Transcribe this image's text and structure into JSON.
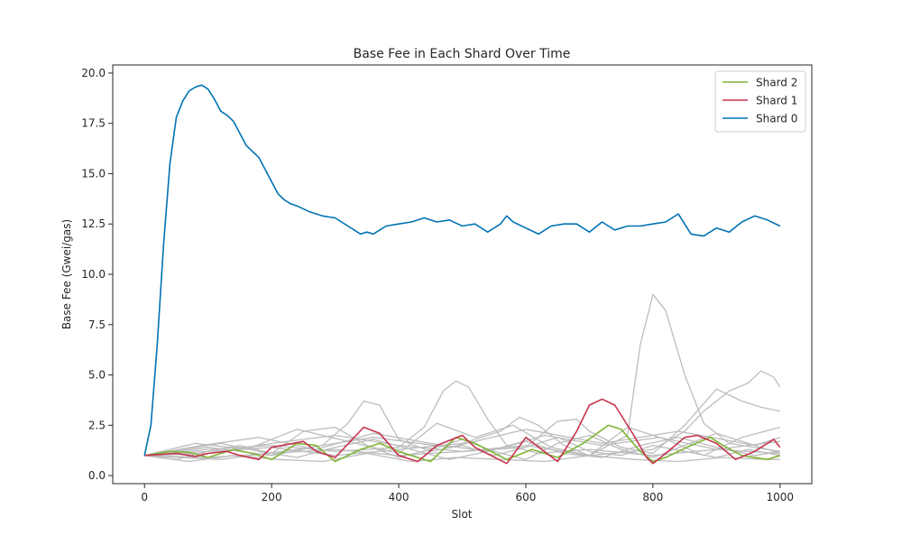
{
  "chart_data": {
    "type": "line",
    "title": "Base Fee in Each Shard Over Time",
    "xlabel": "Slot",
    "ylabel": "Base Fee (Gwei/gas)",
    "xlim": [
      -50,
      1050
    ],
    "ylim": [
      -0.4,
      20.4
    ],
    "xticks": [
      0,
      200,
      400,
      600,
      800,
      1000
    ],
    "xtick_labels": [
      "0",
      "200",
      "400",
      "600",
      "800",
      "1000"
    ],
    "yticks": [
      0.0,
      2.5,
      5.0,
      7.5,
      10.0,
      12.5,
      15.0,
      17.5,
      20.0
    ],
    "ytick_labels": [
      "0.0",
      "2.5",
      "5.0",
      "7.5",
      "10.0",
      "12.5",
      "15.0",
      "17.5",
      "20.0"
    ],
    "grid": false,
    "legend_position": "top-right",
    "legend": [
      "Shard 2",
      "Shard 1",
      "Shard 0"
    ],
    "colors": {
      "shard0": "#0072b2",
      "shard1": "#c8324e",
      "shard2": "#7fb535",
      "other": "#bdbdbd"
    },
    "series": [
      {
        "name": "Shard 0",
        "x": [
          0,
          10,
          20,
          30,
          40,
          50,
          60,
          70,
          80,
          90,
          100,
          110,
          120,
          130,
          140,
          150,
          160,
          170,
          180,
          190,
          200,
          210,
          220,
          230,
          240,
          260,
          280,
          300,
          320,
          340,
          350,
          360,
          380,
          400,
          420,
          440,
          460,
          480,
          500,
          520,
          540,
          560,
          570,
          580,
          600,
          620,
          640,
          660,
          680,
          700,
          720,
          740,
          760,
          780,
          800,
          820,
          840,
          860,
          880,
          900,
          920,
          940,
          960,
          980,
          1000
        ],
        "y": [
          1.0,
          2.5,
          6.5,
          11.5,
          15.5,
          17.8,
          18.6,
          19.1,
          19.3,
          19.4,
          19.2,
          18.7,
          18.1,
          17.9,
          17.6,
          17.0,
          16.4,
          16.1,
          15.8,
          15.2,
          14.6,
          14.0,
          13.7,
          13.5,
          13.4,
          13.1,
          12.9,
          12.8,
          12.4,
          12.0,
          12.1,
          12.0,
          12.4,
          12.5,
          12.6,
          12.8,
          12.6,
          12.7,
          12.4,
          12.5,
          12.1,
          12.5,
          12.9,
          12.6,
          12.3,
          12.0,
          12.4,
          12.5,
          12.5,
          12.1,
          12.6,
          12.2,
          12.4,
          12.4,
          12.5,
          12.6,
          13.0,
          12.0,
          11.9,
          12.3,
          12.1,
          12.6,
          12.9,
          12.7,
          12.4
        ]
      },
      {
        "name": "Shard 1",
        "x": [
          0,
          50,
          80,
          100,
          130,
          150,
          180,
          200,
          250,
          270,
          300,
          330,
          345,
          370,
          400,
          430,
          460,
          500,
          520,
          570,
          600,
          650,
          680,
          700,
          720,
          740,
          770,
          790,
          800,
          820,
          850,
          870,
          900,
          930,
          960,
          990,
          1000
        ],
        "y": [
          1.0,
          1.1,
          0.95,
          1.1,
          1.2,
          1.0,
          0.8,
          1.4,
          1.7,
          1.2,
          0.9,
          1.9,
          2.4,
          2.1,
          1.0,
          0.7,
          1.5,
          2.0,
          1.4,
          0.6,
          1.9,
          0.7,
          2.2,
          3.5,
          3.8,
          3.5,
          2.0,
          0.9,
          0.6,
          1.1,
          1.9,
          2.0,
          1.6,
          0.8,
          1.2,
          1.8,
          1.4
        ]
      },
      {
        "name": "Shard 2",
        "x": [
          0,
          40,
          70,
          100,
          140,
          170,
          200,
          240,
          270,
          300,
          340,
          370,
          400,
          450,
          490,
          520,
          570,
          610,
          650,
          690,
          730,
          750,
          780,
          800,
          820,
          860,
          890,
          910,
          940,
          980,
          1000
        ],
        "y": [
          1.0,
          1.2,
          1.15,
          0.9,
          1.3,
          1.1,
          0.8,
          1.6,
          1.5,
          0.7,
          1.3,
          1.6,
          1.2,
          0.7,
          1.9,
          1.6,
          0.8,
          1.3,
          0.9,
          1.6,
          2.5,
          2.3,
          1.2,
          0.7,
          0.9,
          1.5,
          1.9,
          1.5,
          1.0,
          0.8,
          1.0
        ]
      },
      {
        "name": "",
        "x": [
          0,
          60,
          120,
          180,
          240,
          300,
          360,
          420,
          480,
          540,
          600,
          660,
          720,
          780,
          840,
          900,
          960,
          1000
        ],
        "y": [
          1.0,
          1.3,
          1.6,
          1.2,
          0.9,
          1.4,
          1.8,
          1.3,
          0.8,
          1.2,
          1.7,
          1.1,
          0.9,
          1.5,
          1.9,
          1.4,
          1.0,
          1.2
        ]
      },
      {
        "name": "",
        "x": [
          0,
          50,
          100,
          150,
          200,
          250,
          300,
          350,
          400,
          450,
          500,
          550,
          600,
          650,
          700,
          750,
          800,
          850,
          900,
          950,
          1000
        ],
        "y": [
          1.0,
          0.8,
          1.2,
          1.5,
          1.1,
          2.2,
          2.4,
          1.5,
          0.9,
          1.3,
          1.8,
          1.2,
          0.8,
          1.6,
          2.0,
          1.3,
          0.9,
          1.5,
          2.1,
          1.6,
          1.1
        ]
      },
      {
        "name": "",
        "x": [
          0,
          100,
          200,
          280,
          320,
          345,
          370,
          400,
          450,
          500,
          550,
          600,
          650,
          700,
          750,
          800,
          850,
          900,
          950,
          1000
        ],
        "y": [
          1.0,
          1.4,
          1.0,
          1.5,
          2.6,
          3.7,
          3.5,
          1.8,
          1.2,
          1.5,
          1.0,
          1.4,
          1.9,
          1.2,
          1.0,
          1.5,
          1.2,
          0.9,
          1.3,
          1.0
        ]
      },
      {
        "name": "",
        "x": [
          0,
          100,
          200,
          300,
          400,
          440,
          470,
          490,
          510,
          540,
          570,
          620,
          700,
          800,
          900,
          1000
        ],
        "y": [
          1.0,
          1.3,
          1.5,
          1.2,
          1.4,
          2.4,
          4.2,
          4.7,
          4.4,
          2.8,
          1.5,
          1.1,
          1.3,
          1.0,
          1.3,
          1.1
        ]
      },
      {
        "name": "",
        "x": [
          0,
          100,
          200,
          300,
          400,
          500,
          560,
          590,
          620,
          660,
          700,
          760,
          780,
          800,
          820,
          850,
          880,
          920,
          1000
        ],
        "y": [
          1.0,
          1.2,
          1.4,
          1.0,
          1.3,
          1.6,
          2.2,
          2.9,
          2.5,
          1.5,
          1.0,
          2.0,
          6.5,
          9.0,
          8.2,
          5.0,
          2.6,
          1.6,
          1.2
        ]
      },
      {
        "name": "",
        "x": [
          0,
          100,
          200,
          300,
          400,
          500,
          600,
          700,
          800,
          850,
          880,
          920,
          950,
          970,
          990,
          1000
        ],
        "y": [
          1.0,
          0.9,
          1.1,
          1.3,
          1.0,
          1.2,
          1.5,
          1.0,
          1.3,
          2.2,
          3.2,
          4.2,
          4.6,
          5.2,
          4.9,
          4.4
        ]
      },
      {
        "name": "",
        "x": [
          0,
          100,
          200,
          300,
          400,
          500,
          600,
          650,
          680,
          700,
          750,
          800,
          850,
          900,
          940,
          970,
          1000
        ],
        "y": [
          1.0,
          1.1,
          1.6,
          2.0,
          1.5,
          1.2,
          1.4,
          2.7,
          2.8,
          2.2,
          1.4,
          1.1,
          2.5,
          4.3,
          3.7,
          3.4,
          3.2
        ]
      },
      {
        "name": "",
        "x": [
          0,
          80,
          160,
          240,
          320,
          400,
          460,
          520,
          580,
          640,
          700,
          760,
          820,
          880,
          940,
          1000
        ],
        "y": [
          1.0,
          1.6,
          1.3,
          2.3,
          1.7,
          1.1,
          2.6,
          1.9,
          2.5,
          1.4,
          1.0,
          2.4,
          1.8,
          1.0,
          1.9,
          2.4
        ]
      },
      {
        "name": "",
        "x": [
          0,
          70,
          140,
          210,
          280,
          350,
          420,
          490,
          560,
          630,
          700,
          770,
          840,
          910,
          980,
          1000
        ],
        "y": [
          1.0,
          0.7,
          1.0,
          0.8,
          0.7,
          1.1,
          0.7,
          0.9,
          0.8,
          0.7,
          1.0,
          0.8,
          0.7,
          0.9,
          0.8,
          0.8
        ]
      },
      {
        "name": "",
        "x": [
          0,
          90,
          180,
          270,
          360,
          450,
          540,
          630,
          720,
          810,
          900,
          1000
        ],
        "y": [
          1.0,
          1.5,
          1.9,
          1.3,
          2.1,
          1.6,
          1.2,
          2.0,
          1.5,
          1.9,
          1.3,
          1.7
        ]
      },
      {
        "name": "",
        "x": [
          0,
          120,
          240,
          360,
          480,
          600,
          720,
          840,
          960,
          1000
        ],
        "y": [
          1.0,
          0.8,
          1.3,
          1.9,
          1.4,
          2.3,
          1.6,
          2.2,
          1.5,
          1.9
        ]
      }
    ]
  }
}
